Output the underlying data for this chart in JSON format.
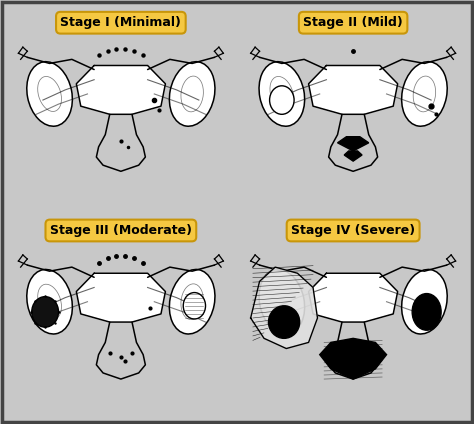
{
  "outer_bg": "#c8c8c8",
  "cell_bg": "#ffffff",
  "label_bg": "#f5c842",
  "label_border": "#c8960a",
  "label_text_color": "#000000",
  "border_color": "#555555",
  "labels": [
    "Stage I (Minimal)",
    "Stage II (Mild)",
    "Stage III (Moderate)",
    "Stage IV (Severe)"
  ],
  "figure_width": 4.74,
  "figure_height": 4.24,
  "dpi": 100
}
